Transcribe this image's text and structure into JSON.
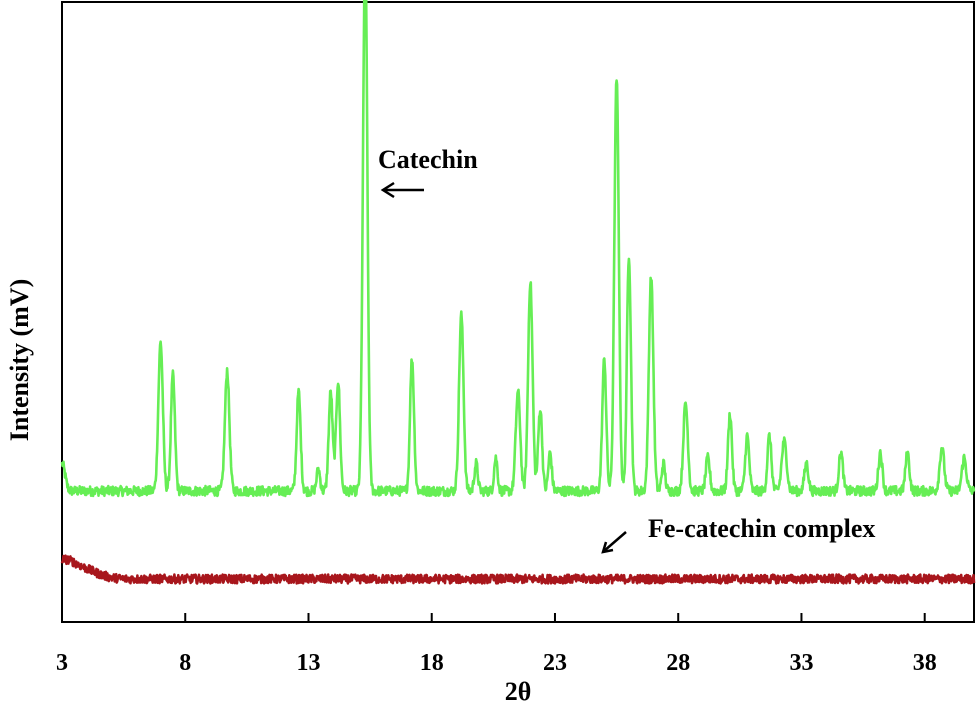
{
  "chart_data": {
    "type": "line",
    "title": "",
    "xlabel": "2θ",
    "ylabel": "Intensity (mV)",
    "xlim": [
      3,
      40
    ],
    "ylim": [
      0,
      100
    ],
    "x_ticks": [
      3,
      8,
      13,
      18,
      23,
      28,
      33,
      38
    ],
    "y_ticks_labeled": false,
    "grid": false,
    "legend": "none",
    "annotations": [
      {
        "text": "Catechin",
        "points_to": "catechin"
      },
      {
        "text": "Fe-catechin  complex",
        "points_to": "fe_catechin_complex"
      }
    ],
    "series": [
      {
        "key": "catechin",
        "color": "#66ee55",
        "baseline": 18,
        "peaks": [
          {
            "x": 3.0,
            "height": 5,
            "width": 0.12
          },
          {
            "x": 7.0,
            "height": 27,
            "width": 0.09
          },
          {
            "x": 7.5,
            "height": 21,
            "width": 0.08
          },
          {
            "x": 9.7,
            "height": 22,
            "width": 0.09
          },
          {
            "x": 12.6,
            "height": 18,
            "width": 0.08
          },
          {
            "x": 13.4,
            "height": 4,
            "width": 0.07
          },
          {
            "x": 13.9,
            "height": 18,
            "width": 0.08
          },
          {
            "x": 14.2,
            "height": 20,
            "width": 0.08
          },
          {
            "x": 15.3,
            "height": 98,
            "width": 0.09
          },
          {
            "x": 17.2,
            "height": 24,
            "width": 0.08
          },
          {
            "x": 19.2,
            "height": 32,
            "width": 0.09
          },
          {
            "x": 19.8,
            "height": 5,
            "width": 0.07
          },
          {
            "x": 20.6,
            "height": 6,
            "width": 0.07
          },
          {
            "x": 21.5,
            "height": 18,
            "width": 0.09
          },
          {
            "x": 22.0,
            "height": 38,
            "width": 0.09
          },
          {
            "x": 22.4,
            "height": 15,
            "width": 0.08
          },
          {
            "x": 22.8,
            "height": 7,
            "width": 0.07
          },
          {
            "x": 25.0,
            "height": 24,
            "width": 0.08
          },
          {
            "x": 25.5,
            "height": 75,
            "width": 0.09
          },
          {
            "x": 26.0,
            "height": 43,
            "width": 0.08
          },
          {
            "x": 26.9,
            "height": 39,
            "width": 0.09
          },
          {
            "x": 27.4,
            "height": 5,
            "width": 0.07
          },
          {
            "x": 28.3,
            "height": 16,
            "width": 0.09
          },
          {
            "x": 29.2,
            "height": 6,
            "width": 0.08
          },
          {
            "x": 30.1,
            "height": 14,
            "width": 0.08
          },
          {
            "x": 30.8,
            "height": 10,
            "width": 0.08
          },
          {
            "x": 31.7,
            "height": 10,
            "width": 0.08
          },
          {
            "x": 32.3,
            "height": 9,
            "width": 0.1
          },
          {
            "x": 33.2,
            "height": 5,
            "width": 0.08
          },
          {
            "x": 34.6,
            "height": 7,
            "width": 0.08
          },
          {
            "x": 36.2,
            "height": 7,
            "width": 0.08
          },
          {
            "x": 37.3,
            "height": 7,
            "width": 0.08
          },
          {
            "x": 38.7,
            "height": 8,
            "width": 0.09
          },
          {
            "x": 39.6,
            "height": 6,
            "width": 0.09
          }
        ],
        "noise": 0.9
      },
      {
        "key": "fe_catechin_complex",
        "color": "#a8161c",
        "baseline": 2,
        "peaks": [
          {
            "x": 3.0,
            "height": 3,
            "width": 0.5
          },
          {
            "x": 3.9,
            "height": 1.5,
            "width": 0.6
          }
        ],
        "noise": 0.8
      }
    ]
  }
}
